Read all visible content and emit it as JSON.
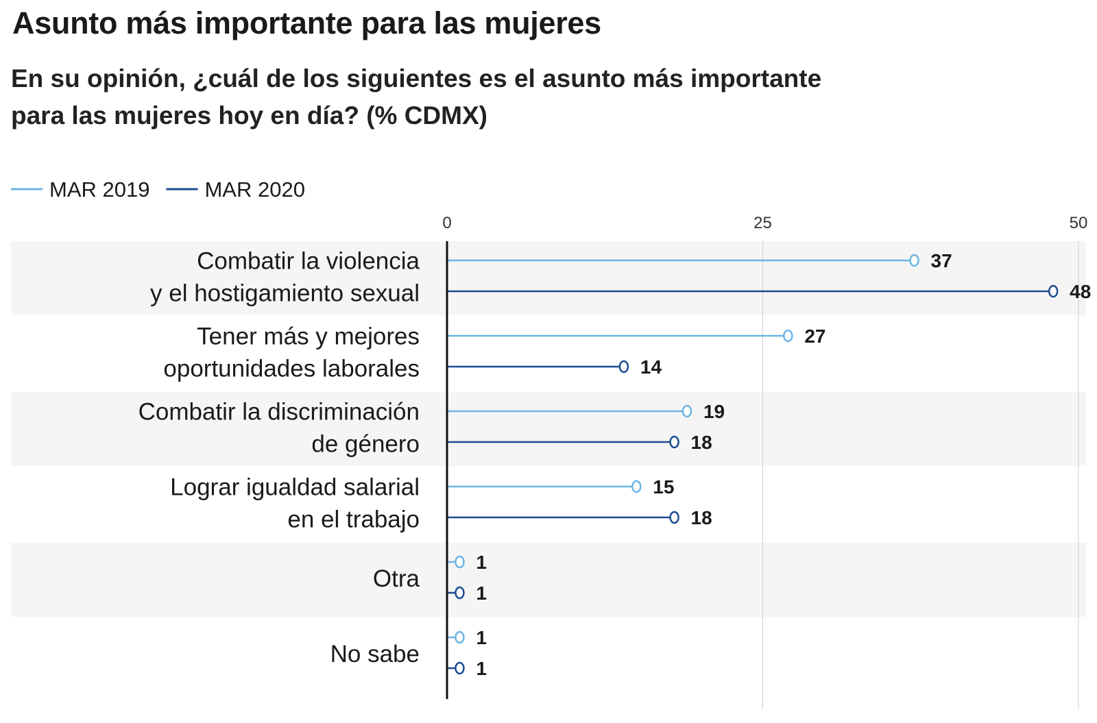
{
  "title": "Asunto más importante para las mujeres",
  "subtitle_line1": "En su opinión, ¿cuál de los siguientes es el asunto más importante",
  "subtitle_line2": "para las mujeres hoy en día?  (% CDMX)",
  "colors": {
    "series_2019": "#6cb4e4",
    "series_2020": "#1a4b91",
    "band": "#f5f5f5",
    "grid": "#cccccc",
    "axis": "#111111"
  },
  "chart_data": {
    "type": "lollipop-bar",
    "orientation": "horizontal",
    "xlim": [
      0,
      50
    ],
    "xticks": [
      0,
      25,
      50
    ],
    "grid": true,
    "legend_position": "top-left",
    "categories": [
      [
        "Combatir la violencia",
        "y el hostigamiento sexual"
      ],
      [
        "Tener más y mejores",
        "oportunidades laborales"
      ],
      [
        "Combatir la discriminación",
        "de género"
      ],
      [
        "Lograr igualdad salarial",
        "en el trabajo"
      ],
      [
        "Otra"
      ],
      [
        "No sabe"
      ]
    ],
    "series": [
      {
        "name": "MAR 2019",
        "values": [
          37,
          27,
          19,
          15,
          1,
          1
        ]
      },
      {
        "name": "MAR 2020",
        "values": [
          48,
          14,
          18,
          18,
          1,
          1
        ]
      }
    ]
  }
}
